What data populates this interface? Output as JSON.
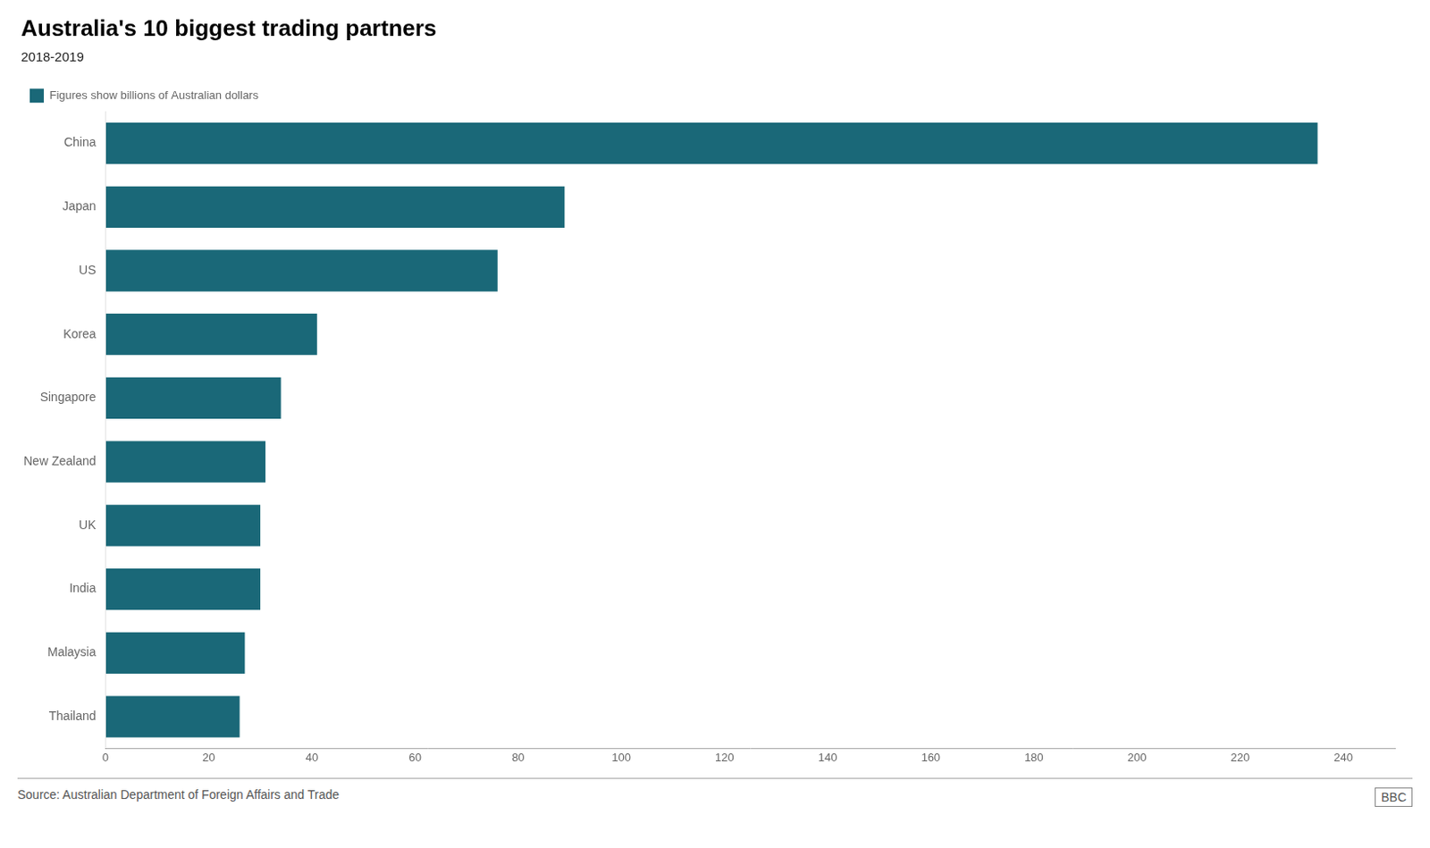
{
  "chart_data": {
    "type": "bar",
    "orientation": "horizontal",
    "title": "Australia's 10 biggest trading partners",
    "subtitle": "2018-2019",
    "source": "Source: Australian Department of Foreign Affairs and Trade",
    "annotations": [
      "BBC"
    ],
    "categories": [
      "Thailand",
      "Malaysia",
      "India",
      "UK",
      "New Zealand",
      "Singapore",
      "Korea",
      "US",
      "Japan",
      "China"
    ],
    "series": [
      {
        "name": "Figures show billions of Australian dollars",
        "color": "#1a6878",
        "values": [
          26,
          27,
          30,
          30,
          31,
          34,
          41,
          76,
          89,
          235
        ]
      }
    ],
    "xlim": [
      0,
      250
    ],
    "xticks": [
      0,
      20,
      40,
      60,
      80,
      100,
      120,
      140,
      160,
      180,
      200,
      220,
      240
    ],
    "grid": false,
    "legend": "top"
  }
}
